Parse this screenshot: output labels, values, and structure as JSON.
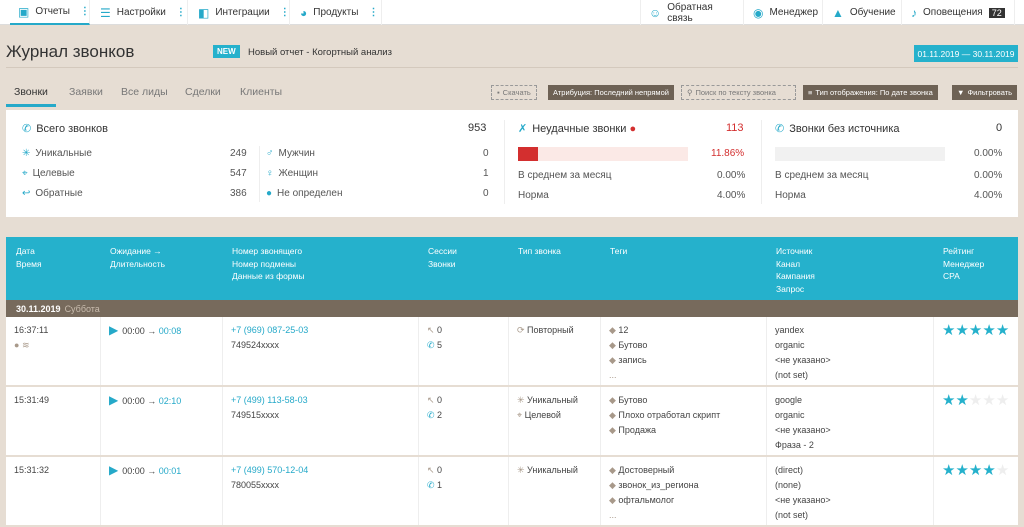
{
  "topnav": {
    "left": [
      {
        "label": "Отчеты",
        "icon": "clipboard-icon",
        "active": true
      },
      {
        "label": "Настройки",
        "icon": "sliders-icon"
      },
      {
        "label": "Интеграции",
        "icon": "puzzle-icon"
      },
      {
        "label": "Продукты",
        "icon": "products-icon"
      }
    ],
    "right": [
      {
        "label": "Обратная связь",
        "icon": "chat-icon"
      },
      {
        "label": "Менеджер",
        "icon": "headset-icon"
      },
      {
        "label": "Обучение",
        "icon": "graduation-cap-icon"
      },
      {
        "label": "Оповещения",
        "icon": "bell-icon",
        "badge": "72"
      }
    ]
  },
  "header": {
    "title": "Журнал звонков",
    "new_badge": "NEW",
    "new_text": "Новый отчет - Когортный анализ",
    "date_range": "01.11.2019  —  30.11.2019"
  },
  "tabs": [
    {
      "label": "Звонки",
      "active": true
    },
    {
      "label": "Заявки"
    },
    {
      "label": "Все лиды"
    },
    {
      "label": "Сделки"
    },
    {
      "label": "Клиенты"
    }
  ],
  "toolbar": {
    "download": "Скачать",
    "attribution": "Атрибуция: Последний непрямой",
    "search": "Поиск по тексту звонка",
    "display_type": "Тип отображения: По дате звонка",
    "filter": "Фильтровать"
  },
  "stats": {
    "total": {
      "label": "Всего звонков",
      "value": "953"
    },
    "left": [
      {
        "label": "Уникальные",
        "value": "249",
        "icon": "asterisk-icon"
      },
      {
        "label": "Целевые",
        "value": "547",
        "icon": "target-icon"
      },
      {
        "label": "Обратные",
        "value": "386",
        "icon": "return-icon"
      }
    ],
    "gender": [
      {
        "label": "Мужчин",
        "value": "0",
        "icon": "male-icon"
      },
      {
        "label": "Женщин",
        "value": "1",
        "icon": "female-icon"
      },
      {
        "label": "Не определен",
        "value": "0",
        "icon": "person-icon"
      }
    ],
    "failed": {
      "label": "Неудачные звонки",
      "value": "113",
      "percent": "11.86%",
      "fill": 11.86,
      "avg_label": "В среднем за месяц",
      "avg": "0.00%",
      "norm_label": "Норма",
      "norm": "4.00%",
      "color": "#d32f2f"
    },
    "nosource": {
      "label": "Звонки без источника",
      "value": "0",
      "percent": "0.00%",
      "fill": 0,
      "avg_label": "В среднем за месяц",
      "avg": "0.00%",
      "norm_label": "Норма",
      "norm": "4.00%"
    }
  },
  "table": {
    "headers": [
      [
        "Дата",
        "Время"
      ],
      [
        "Ожидание →",
        "Длительность"
      ],
      [
        "Номер звонящего",
        "Номер подмены",
        "Данные из формы"
      ],
      [
        "Сессии",
        "Звонки"
      ],
      [
        "Тип звонка"
      ],
      [
        "Теги"
      ],
      [
        "Источник",
        "Канал",
        "Кампания",
        "Запрос"
      ],
      [
        "Рейтинг",
        "Менеджер",
        "CPA"
      ]
    ],
    "group": {
      "date": "30.11.2019",
      "weekday": "Суббота"
    },
    "rows": [
      {
        "time": "16:37:11",
        "wait": "00:00",
        "duration": "00:08",
        "phone": "+7 (969) 087-25-03",
        "sub": "749524xxxx",
        "sessions": "0",
        "calls": "5",
        "types": [
          "Повторный"
        ],
        "tags": [
          "12",
          "Бутово",
          "запись"
        ],
        "more": "...",
        "source": [
          "yandex",
          "organic",
          "<не указано>",
          "(not set)"
        ],
        "rating": 5
      },
      {
        "time": "15:31:49",
        "wait": "00:00",
        "duration": "02:10",
        "phone": "+7 (499) 113-58-03",
        "sub": "749515xxxx",
        "sessions": "0",
        "calls": "2",
        "types": [
          "Уникальный",
          "Целевой"
        ],
        "tags": [
          "Бутово",
          "Плохо отработал скрипт",
          "Продажа"
        ],
        "more": "",
        "source": [
          "google",
          "organic",
          "<не указано>",
          "Фраза - 2"
        ],
        "rating": 2
      },
      {
        "time": "15:31:32",
        "wait": "00:00",
        "duration": "00:01",
        "phone": "+7 (499) 570-12-04",
        "sub": "780055xxxx",
        "sessions": "0",
        "calls": "1",
        "types": [
          "Уникальный"
        ],
        "tags": [
          "Достоверный",
          "звонок_из_региона",
          "офтальмолог"
        ],
        "more": "...",
        "source": [
          "(direct)",
          "(none)",
          "<не указано>",
          "(not set)"
        ],
        "rating": 4
      }
    ]
  }
}
